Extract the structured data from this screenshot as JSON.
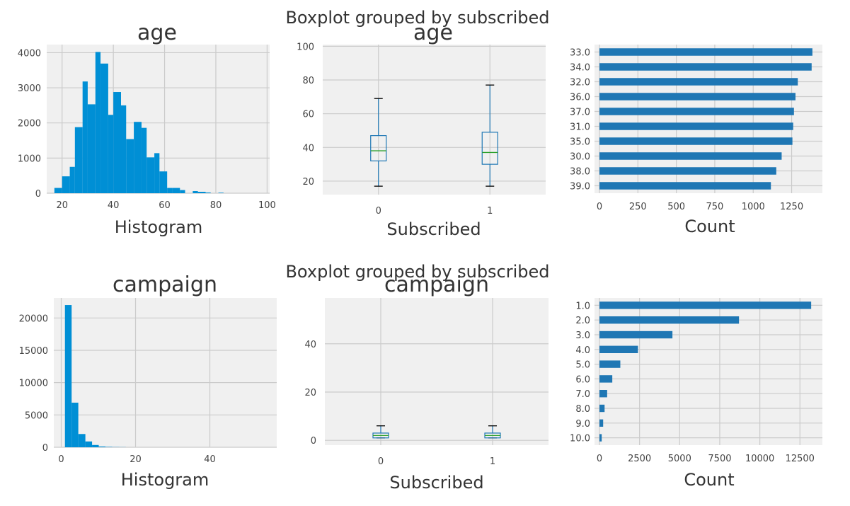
{
  "colors": {
    "hist": "#008fd5",
    "barh": "#1f77b4",
    "box": "#1f77b4",
    "median": "#2ca02c",
    "whisker": "#000000"
  },
  "suptitles": [
    "Boxplot grouped by subscribed",
    "Boxplot grouped by subscribed"
  ],
  "chart_data": [
    {
      "type": "bar",
      "subtype": "histogram",
      "title": "age",
      "xlabel": "Histogram",
      "ylabel": "",
      "bins": [
        {
          "from": 17,
          "to": 20,
          "value": 150
        },
        {
          "from": 20,
          "to": 23,
          "value": 480
        },
        {
          "from": 23,
          "to": 25,
          "value": 750
        },
        {
          "from": 25,
          "to": 28,
          "value": 1880
        },
        {
          "from": 28,
          "to": 30,
          "value": 3180
        },
        {
          "from": 30,
          "to": 33,
          "value": 2530
        },
        {
          "from": 33,
          "to": 35,
          "value": 4020
        },
        {
          "from": 35,
          "to": 38,
          "value": 3690
        },
        {
          "from": 38,
          "to": 40,
          "value": 2230
        },
        {
          "from": 40,
          "to": 43,
          "value": 2880
        },
        {
          "from": 43,
          "to": 45,
          "value": 2500
        },
        {
          "from": 45,
          "to": 48,
          "value": 1540
        },
        {
          "from": 48,
          "to": 51,
          "value": 2030
        },
        {
          "from": 51,
          "to": 53,
          "value": 1860
        },
        {
          "from": 53,
          "to": 56,
          "value": 1020
        },
        {
          "from": 56,
          "to": 58,
          "value": 1140
        },
        {
          "from": 58,
          "to": 61,
          "value": 620
        },
        {
          "from": 61,
          "to": 63,
          "value": 150
        },
        {
          "from": 63,
          "to": 66,
          "value": 150
        },
        {
          "from": 66,
          "to": 68,
          "value": 90
        },
        {
          "from": 71,
          "to": 73,
          "value": 60
        },
        {
          "from": 73,
          "to": 76,
          "value": 40
        },
        {
          "from": 76,
          "to": 78,
          "value": 20
        },
        {
          "from": 81,
          "to": 83,
          "value": 15
        }
      ],
      "xlim": [
        14,
        101
      ],
      "ylim": [
        0,
        4230
      ],
      "xticks": [
        20,
        40,
        60,
        80,
        100
      ],
      "yticks": [
        0,
        1000,
        2000,
        3000,
        4000
      ],
      "grid": true
    },
    {
      "type": "boxplot",
      "title": "age",
      "xlabel": "Subscribed",
      "categories": [
        "0",
        "1"
      ],
      "boxes": [
        {
          "whislo": 17,
          "q1": 32,
          "med": 38,
          "q3": 47,
          "whishi": 69
        },
        {
          "whislo": 17,
          "q1": 30,
          "med": 37,
          "q3": 49,
          "whishi": 77
        }
      ],
      "ylim": [
        12,
        101
      ],
      "yticks": [
        20,
        40,
        60,
        80,
        100
      ],
      "grid": true
    },
    {
      "type": "bar",
      "orientation": "horizontal",
      "categories": [
        "33.0",
        "34.0",
        "32.0",
        "36.0",
        "37.0",
        "31.0",
        "35.0",
        "30.0",
        "38.0",
        "39.0"
      ],
      "values": [
        1385,
        1380,
        1290,
        1275,
        1265,
        1260,
        1255,
        1185,
        1150,
        1115
      ],
      "xlabel": "Count",
      "xlim": [
        0,
        1450
      ],
      "xticks": [
        0,
        250,
        500,
        750,
        1000,
        1250
      ],
      "grid": true
    },
    {
      "type": "bar",
      "subtype": "histogram",
      "title": "campaign",
      "xlabel": "Histogram",
      "ylabel": "",
      "bins": [
        {
          "from": 1,
          "to": 2.8,
          "value": 22000
        },
        {
          "from": 2.8,
          "to": 4.6,
          "value": 6900
        },
        {
          "from": 4.6,
          "to": 6.5,
          "value": 2050
        },
        {
          "from": 6.5,
          "to": 8.3,
          "value": 900
        },
        {
          "from": 8.3,
          "to": 10.1,
          "value": 350
        },
        {
          "from": 10.1,
          "to": 11.9,
          "value": 120
        },
        {
          "from": 11.9,
          "to": 13.7,
          "value": 60
        },
        {
          "from": 13.7,
          "to": 15.6,
          "value": 30
        },
        {
          "from": 15.6,
          "to": 17.4,
          "value": 20
        }
      ],
      "xlim": [
        -2,
        58
      ],
      "ylim": [
        0,
        23100
      ],
      "xticks": [
        0,
        20,
        40
      ],
      "yticks": [
        0,
        5000,
        10000,
        15000,
        20000
      ],
      "grid": true
    },
    {
      "type": "boxplot",
      "title": "campaign",
      "xlabel": "Subscribed",
      "categories": [
        "0",
        "1"
      ],
      "boxes": [
        {
          "whislo": 1,
          "q1": 1,
          "med": 2,
          "q3": 3,
          "whishi": 6
        },
        {
          "whislo": 1,
          "q1": 1,
          "med": 2,
          "q3": 3,
          "whishi": 6
        }
      ],
      "ylim": [
        -2,
        59
      ],
      "yticks": [
        0,
        20,
        40
      ],
      "grid": true
    },
    {
      "type": "bar",
      "orientation": "horizontal",
      "categories": [
        "1.0",
        "2.0",
        "3.0",
        "4.0",
        "5.0",
        "6.0",
        "7.0",
        "8.0",
        "9.0",
        "10.0"
      ],
      "values": [
        13200,
        8700,
        4550,
        2400,
        1300,
        800,
        480,
        320,
        230,
        140
      ],
      "xlabel": "Count",
      "xlim": [
        0,
        13900
      ],
      "xticks": [
        0,
        2500,
        5000,
        7500,
        10000,
        12500
      ],
      "grid": true
    }
  ]
}
